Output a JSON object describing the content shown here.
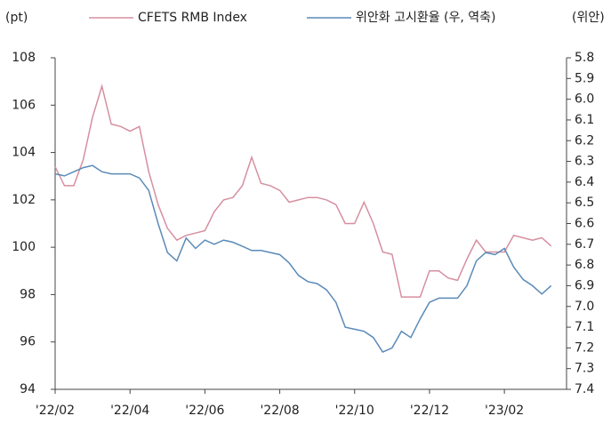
{
  "chart_data": {
    "type": "line",
    "ylabel": "(pt)",
    "y2label": "(위안)",
    "x": [
      0,
      0.25,
      0.5,
      0.75,
      1,
      1.25,
      1.5,
      1.75,
      2,
      2.25,
      2.5,
      2.75,
      3,
      3.25,
      3.5,
      3.75,
      4,
      4.25,
      4.5,
      4.75,
      5,
      5.25,
      5.5,
      5.75,
      6,
      6.25,
      6.5,
      6.75,
      7,
      7.25,
      7.5,
      7.75,
      8,
      8.25,
      8.5,
      8.75,
      9,
      9.25,
      9.5,
      9.75,
      10,
      10.25,
      10.5,
      10.75,
      11,
      11.25,
      11.5,
      11.75,
      12,
      12.25,
      12.5,
      12.75,
      13,
      13.25
    ],
    "xlim": [
      0,
      13.66
    ],
    "xticks": [
      {
        "value": 0,
        "label": "'22/02"
      },
      {
        "value": 2,
        "label": "'22/04"
      },
      {
        "value": 4,
        "label": "'22/06"
      },
      {
        "value": 6,
        "label": "'22/08"
      },
      {
        "value": 8,
        "label": "'22/10"
      },
      {
        "value": 10,
        "label": "'22/12"
      },
      {
        "value": 12,
        "label": "'23/02"
      }
    ],
    "ylim": [
      94,
      108
    ],
    "yticks": [
      94,
      96,
      98,
      100,
      102,
      104,
      106,
      108
    ],
    "y2lim": [
      7.4,
      5.8
    ],
    "y2ticks": [
      5.8,
      5.9,
      {
        "value": 6,
        "label": "6.0"
      },
      6.1,
      6.2,
      6.3,
      6.4,
      6.5,
      6.6,
      6.7,
      6.8,
      6.9,
      {
        "value": 7,
        "label": "7.0"
      },
      7.1,
      7.2,
      7.3,
      7.4
    ],
    "series": [
      {
        "name": "CFETS RMB Index",
        "color": "#d68fa0",
        "values": [
          103.4,
          102.6,
          102.6,
          103.7,
          105.5,
          106.8,
          105.2,
          105.1,
          104.9,
          105.1,
          103.2,
          101.8,
          100.8,
          100.3,
          100.5,
          100.6,
          100.7,
          101.5,
          102,
          102.1,
          102.6,
          103.8,
          102.7,
          102.6,
          102.4,
          101.9,
          102,
          102.1,
          102.1,
          102,
          101.8,
          101,
          101,
          101.9,
          101,
          99.8,
          99.7,
          97.9,
          97.9,
          97.9,
          99,
          99,
          98.7,
          98.6,
          99.5,
          100.3,
          99.8,
          99.8,
          99.8,
          100.5,
          100.4,
          100.3,
          100.4,
          100.05
        ]
      },
      {
        "name": "위안화 고시환율 (우, 역축)",
        "color": "#5a8ab8",
        "axis": "y2",
        "values": [
          6.36,
          6.37,
          6.35,
          6.33,
          6.32,
          6.35,
          6.36,
          6.36,
          6.36,
          6.38,
          6.44,
          6.6,
          6.74,
          6.78,
          6.67,
          6.72,
          6.68,
          6.7,
          6.68,
          6.69,
          6.71,
          6.73,
          6.73,
          6.74,
          6.75,
          6.79,
          6.85,
          6.88,
          6.89,
          6.92,
          6.98,
          7.1,
          7.11,
          7.12,
          7.15,
          7.22,
          7.2,
          7.12,
          7.15,
          7.06,
          6.98,
          6.96,
          6.96,
          6.96,
          6.9,
          6.78,
          6.74,
          6.75,
          6.72,
          6.81,
          6.87,
          6.9,
          6.94,
          6.9
        ]
      }
    ]
  }
}
